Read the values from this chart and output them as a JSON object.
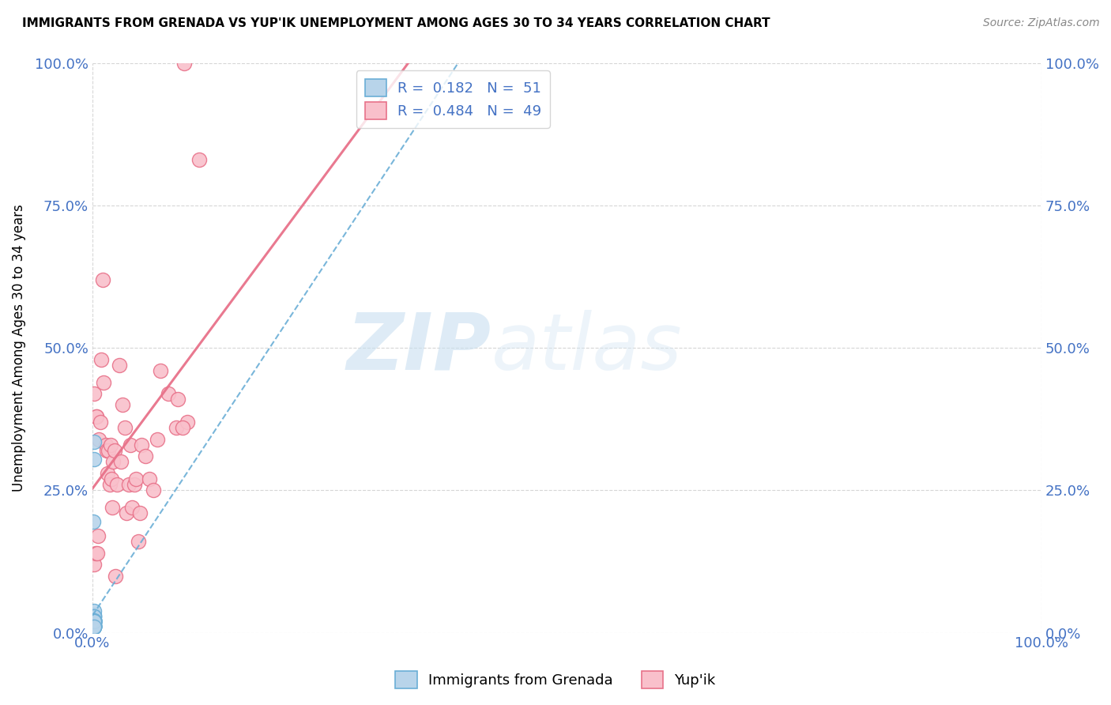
{
  "title": "IMMIGRANTS FROM GRENADA VS YUP'IK UNEMPLOYMENT AMONG AGES 30 TO 34 YEARS CORRELATION CHART",
  "source": "Source: ZipAtlas.com",
  "ylabel": "Unemployment Among Ages 30 to 34 years",
  "legend_label1": "Immigrants from Grenada",
  "legend_label2": "Yup'ik",
  "R1": 0.182,
  "N1": 51,
  "R2": 0.484,
  "N2": 49,
  "color_grenada": "#b8d4ea",
  "color_grenada_edge": "#6aaed6",
  "color_grenada_line": "#6aaed6",
  "color_yupik": "#f9c0cb",
  "color_yupik_edge": "#e8728a",
  "color_yupik_line": "#e8728a",
  "color_text_blue": "#4472C4",
  "background_color": "#ffffff",
  "watermark_zip": "ZIP",
  "watermark_atlas": "atlas",
  "xlim": [
    0.0,
    1.0
  ],
  "ylim": [
    0.0,
    1.0
  ],
  "x_ticks": [
    0.0,
    1.0
  ],
  "y_ticks": [
    0.0,
    0.25,
    0.5,
    0.75,
    1.0
  ],
  "grenada_x": [
    0.0015,
    0.0018,
    0.0012,
    0.0016,
    0.0014,
    0.0017,
    0.0019,
    0.0013,
    0.0011,
    0.0015,
    0.0016,
    0.0018,
    0.001,
    0.0014,
    0.0017,
    0.002,
    0.0013,
    0.0016,
    0.0011,
    0.0014,
    0.0015,
    0.0017,
    0.0018,
    0.0014,
    0.0016,
    0.0018,
    0.0019,
    0.0013,
    0.0015,
    0.001,
    0.0017,
    0.0014,
    0.0016,
    0.0019,
    0.0013,
    0.0017,
    0.0014,
    0.0011,
    0.0015,
    0.0018,
    0.0014,
    0.0015,
    0.0017,
    0.0018,
    0.0013,
    0.0021,
    0.0017,
    0.0015,
    0.0014,
    0.0015,
    0.0016
  ],
  "grenada_y": [
    0.335,
    0.305,
    0.195,
    0.022,
    0.012,
    0.021,
    0.032,
    0.018,
    0.019,
    0.012,
    0.02,
    0.022,
    0.01,
    0.011,
    0.028,
    0.018,
    0.012,
    0.022,
    0.028,
    0.012,
    0.012,
    0.02,
    0.021,
    0.019,
    0.011,
    0.021,
    0.02,
    0.012,
    0.018,
    0.028,
    0.011,
    0.019,
    0.038,
    0.021,
    0.021,
    0.011,
    0.019,
    0.021,
    0.028,
    0.011,
    0.021,
    0.022,
    0.028,
    0.012,
    0.019,
    0.011,
    0.022,
    0.02,
    0.012,
    0.02,
    0.011
  ],
  "yupik_x": [
    0.002,
    0.002,
    0.003,
    0.004,
    0.004,
    0.005,
    0.006,
    0.007,
    0.008,
    0.009,
    0.011,
    0.012,
    0.014,
    0.015,
    0.016,
    0.017,
    0.018,
    0.019,
    0.02,
    0.021,
    0.022,
    0.023,
    0.024,
    0.026,
    0.028,
    0.03,
    0.032,
    0.034,
    0.036,
    0.038,
    0.04,
    0.042,
    0.044,
    0.046,
    0.048,
    0.05,
    0.052,
    0.056,
    0.06,
    0.064,
    0.068,
    0.072,
    0.08,
    0.088,
    0.1,
    0.112,
    0.09,
    0.095,
    0.097
  ],
  "yupik_y": [
    0.42,
    0.12,
    0.14,
    0.38,
    0.38,
    0.14,
    0.17,
    0.34,
    0.37,
    0.48,
    0.62,
    0.44,
    0.33,
    0.32,
    0.28,
    0.32,
    0.26,
    0.33,
    0.27,
    0.22,
    0.3,
    0.32,
    0.1,
    0.26,
    0.47,
    0.3,
    0.4,
    0.36,
    0.21,
    0.26,
    0.33,
    0.22,
    0.26,
    0.27,
    0.16,
    0.21,
    0.33,
    0.31,
    0.27,
    0.25,
    0.34,
    0.46,
    0.42,
    0.36,
    0.37,
    0.83,
    0.41,
    0.36,
    1.0
  ]
}
